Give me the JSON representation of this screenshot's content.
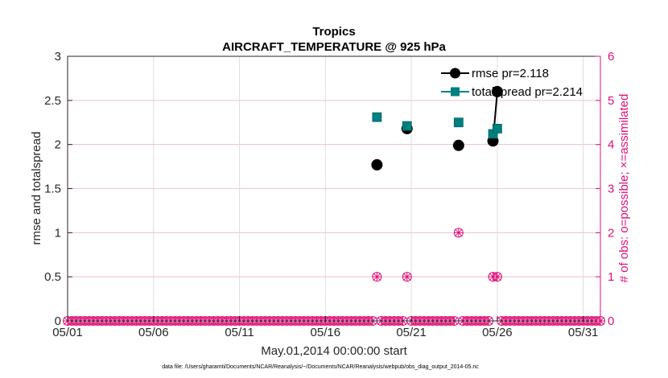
{
  "chart_data": {
    "type": "scatter",
    "title": "Tropics",
    "subtitle": "AIRCRAFT_TEMPERATURE @ 925 hPa",
    "xlabel": "May.01,2014 00:00:00 start",
    "ylabel": "rmse and totalspread",
    "y2label": "# of obs: o=possible; ×=assimilated",
    "footnote": "data file: /Users/gharamti/Documents/NCAR/Reanalysis/~/Documents/NCAR/Reanalysis/webpub/obs_diag_output_2014-05.nc",
    "xlim": [
      1,
      32
    ],
    "ylim": [
      0,
      3
    ],
    "y2lim": [
      0,
      6
    ],
    "x_ticks": [
      1,
      6,
      11,
      16,
      21,
      26,
      31
    ],
    "x_tick_labels": [
      "05/01",
      "05/06",
      "05/11",
      "05/16",
      "05/21",
      "05/26",
      "05/31"
    ],
    "y_ticks": [
      0,
      0.5,
      1,
      1.5,
      2,
      2.5,
      3
    ],
    "y_tick_labels": [
      "0",
      "0.5",
      "1",
      "1.5",
      "2",
      "2.5",
      "3"
    ],
    "y2_ticks": [
      0,
      1,
      2,
      3,
      4,
      5,
      6
    ],
    "y2_tick_labels": [
      "0",
      "1",
      "2",
      "3",
      "4",
      "5",
      "6"
    ],
    "grid": true,
    "legend_position": "top-right",
    "series": [
      {
        "name": "rmse pr=2.118",
        "color": "#000000",
        "marker": "circle",
        "x": [
          19.0,
          20.75,
          23.75,
          25.75,
          26.0
        ],
        "y": [
          1.77,
          2.18,
          1.99,
          2.04,
          2.6
        ]
      },
      {
        "name": "totalspread pr=2.214",
        "color": "#008080",
        "marker": "square",
        "x": [
          19.0,
          20.75,
          23.75,
          25.75,
          26.0
        ],
        "y": [
          2.31,
          2.21,
          2.25,
          2.12,
          2.18
        ]
      }
    ],
    "obs_counts": {
      "color": "#dd1177",
      "step_days": 0.25,
      "nonzero": [
        {
          "x": 19.0,
          "possible": 1,
          "assimilated": 1
        },
        {
          "x": 20.75,
          "possible": 1,
          "assimilated": 1
        },
        {
          "x": 23.75,
          "possible": 2,
          "assimilated": 2
        },
        {
          "x": 25.75,
          "possible": 1,
          "assimilated": 1
        },
        {
          "x": 26.0,
          "possible": 1,
          "assimilated": 1
        }
      ]
    }
  }
}
